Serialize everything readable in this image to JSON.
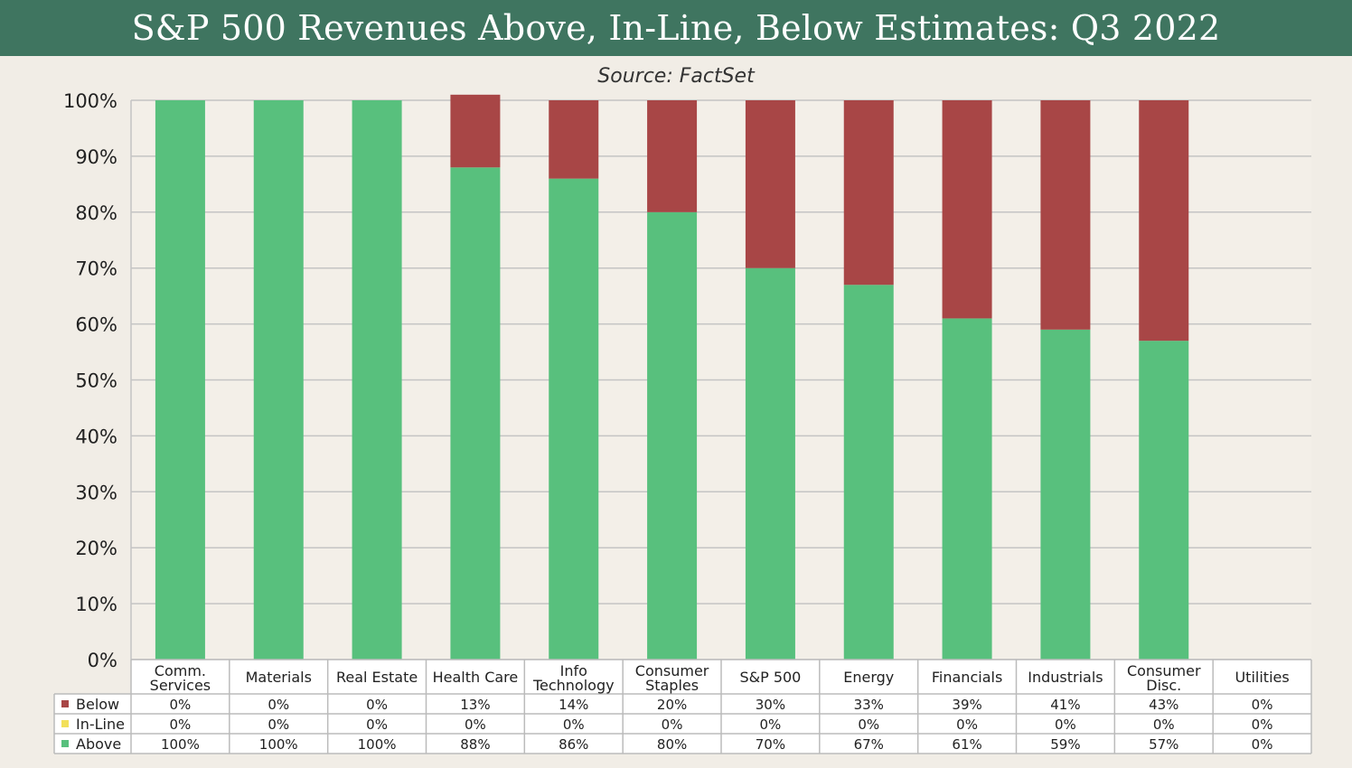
{
  "header": {
    "title": "S&P 500 Revenues Above, In-Line, Below Estimates: Q3 2022",
    "subtitle": "Source: FactSet"
  },
  "colors": {
    "title_bar": "#3f7560",
    "above": "#58c07d",
    "in_line": "#f2e05a",
    "below": "#a84646",
    "background": "#f1ede6"
  },
  "chart_data": {
    "type": "bar",
    "stacked": true,
    "title": "S&P 500 Revenues Above, In-Line, Below Estimates: Q3 2022",
    "subtitle": "Source: FactSet",
    "categories": [
      [
        "Comm.",
        "Services"
      ],
      [
        "Materials"
      ],
      [
        "Real Estate"
      ],
      [
        "Health Care"
      ],
      [
        "Info",
        "Technology"
      ],
      [
        "Consumer",
        "Staples"
      ],
      [
        "S&P 500"
      ],
      [
        "Energy"
      ],
      [
        "Financials"
      ],
      [
        "Industrials"
      ],
      [
        "Consumer",
        "Disc."
      ],
      [
        "Utilities"
      ]
    ],
    "series": [
      {
        "name": "Below",
        "color": "#a84646",
        "values": [
          0,
          0,
          0,
          13,
          14,
          20,
          30,
          33,
          39,
          41,
          43,
          0
        ]
      },
      {
        "name": "In-Line",
        "color": "#f2e05a",
        "values": [
          0,
          0,
          0,
          0,
          0,
          0,
          0,
          0,
          0,
          0,
          0,
          0
        ]
      },
      {
        "name": "Above",
        "color": "#58c07d",
        "values": [
          100,
          100,
          100,
          88,
          86,
          80,
          70,
          67,
          61,
          59,
          57,
          0
        ]
      }
    ],
    "table_labels": [
      [
        "0%",
        "0%",
        "0%",
        "13%",
        "14%",
        "20%",
        "30%",
        "33%",
        "39%",
        "41%",
        "43%",
        "0%"
      ],
      [
        "0%",
        "0%",
        "0%",
        "0%",
        "0%",
        "0%",
        "0%",
        "0%",
        "0%",
        "0%",
        "0%",
        "0%"
      ],
      [
        "100%",
        "100%",
        "100%",
        "88%",
        "86%",
        "80%",
        "70%",
        "67%",
        "61%",
        "59%",
        "57%",
        "0%"
      ]
    ],
    "yticks": [
      "0%",
      "10%",
      "20%",
      "30%",
      "40%",
      "50%",
      "60%",
      "70%",
      "80%",
      "90%",
      "100%"
    ],
    "ylim": [
      0,
      100
    ],
    "grid": true,
    "legend": "data-table-left"
  }
}
